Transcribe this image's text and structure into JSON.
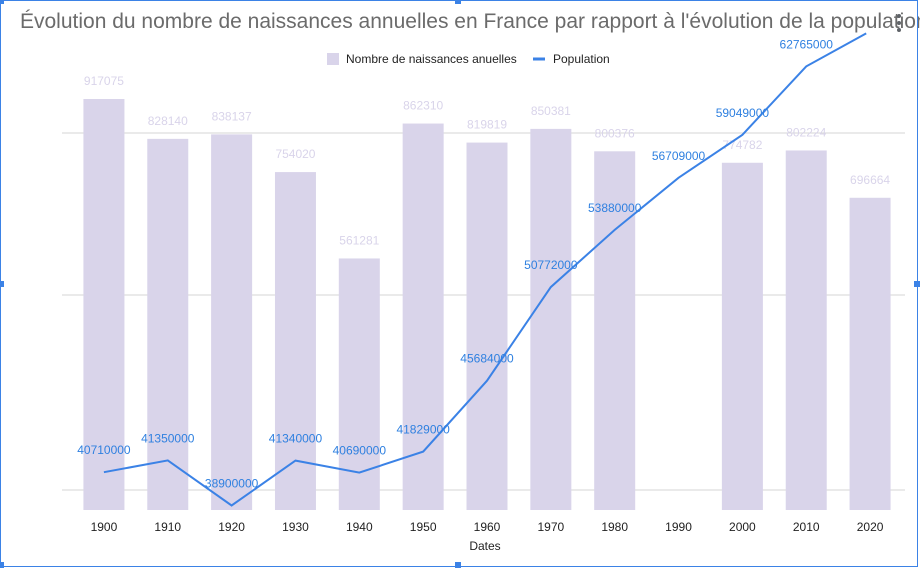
{
  "chart_data": {
    "type": "bar",
    "title": "Évolution du nombre de naissances annuelles en France par rapport à l'évolution de la population",
    "xlabel": "Dates",
    "categories": [
      "1900",
      "1910",
      "1920",
      "1930",
      "1940",
      "1950",
      "1960",
      "1970",
      "1980",
      "1990",
      "2000",
      "2010",
      "2020"
    ],
    "series": [
      {
        "name": "Nombre de naissances anuelles",
        "kind": "bar",
        "color": "#d9d4ea",
        "values": [
          917075,
          828140,
          838137,
          754020,
          561281,
          862310,
          819819,
          850381,
          800376,
          null,
          774782,
          802224,
          696664
        ]
      },
      {
        "name": "Population",
        "kind": "line",
        "color": "#3b82e6",
        "values": [
          40710000,
          41350000,
          38900000,
          41340000,
          40690000,
          41829000,
          45684000,
          50772000,
          53880000,
          56709000,
          59049000,
          62765000,
          null
        ]
      }
    ],
    "legend_position": "top",
    "gridlines": true
  },
  "ui": {
    "menu_icon": "more-vert-icon",
    "accent_color": "#3b82e6"
  }
}
